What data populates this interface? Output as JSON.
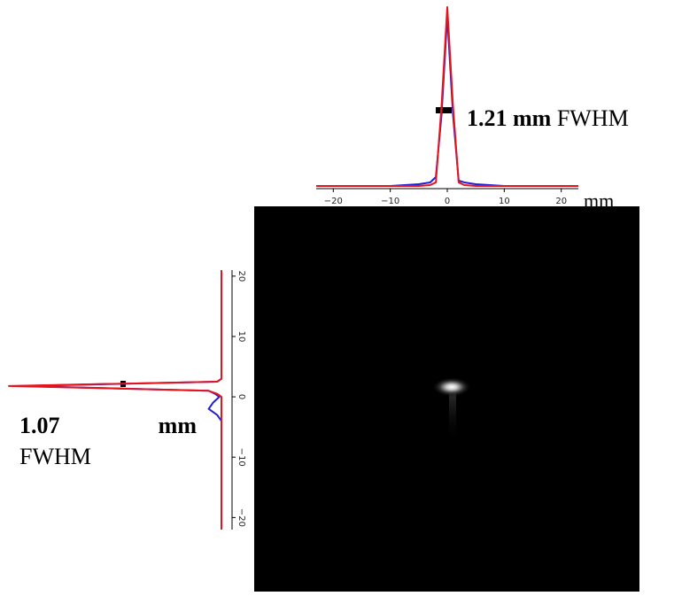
{
  "chart_data": [
    {
      "type": "line",
      "orientation": "horizontal",
      "xlabel": "mm",
      "annotation": "1.21 mm",
      "annotation_suffix": "FWHM",
      "x": [
        -23,
        -20,
        -10,
        -5,
        -3,
        -2,
        -1,
        0,
        1,
        2,
        3,
        5,
        10,
        20,
        23
      ],
      "series": [
        {
          "color": "#1f1fd6",
          "values": [
            0,
            0,
            0,
            0.01,
            0.02,
            0.05,
            0.4,
            0.95,
            0.4,
            0.03,
            0.02,
            0.01,
            0,
            0,
            0
          ]
        },
        {
          "color": "#e8141c",
          "values": [
            0,
            0,
            0,
            0,
            0.005,
            0.02,
            0.45,
            1,
            0.45,
            0.02,
            0.005,
            0,
            0,
            0,
            0
          ]
        }
      ],
      "xlim": [
        -23,
        23
      ],
      "xticks": [
        {
          "value": -20,
          "label": "−20"
        },
        {
          "value": -10,
          "label": "−10"
        },
        0,
        10,
        20
      ],
      "ylim": [
        0,
        1
      ]
    },
    {
      "type": "line",
      "orientation": "vertical",
      "annotation": "1.07",
      "annotation_unit": "mm",
      "annotation_suffix": "FWHM",
      "x": [
        -22,
        -5,
        -4,
        -3,
        -2,
        -1,
        0,
        0.5,
        1,
        1.8,
        2.5,
        3,
        10,
        21
      ],
      "series": [
        {
          "color": "#1f1fd6",
          "values": [
            0,
            0,
            0,
            0.02,
            0.06,
            0.04,
            0.01,
            0.03,
            0.06,
            0.95,
            0.02,
            0,
            0,
            0
          ]
        },
        {
          "color": "#e8141c",
          "values": [
            0,
            0,
            0,
            0,
            0,
            0,
            0,
            0.02,
            0.06,
            1,
            0.02,
            0,
            0,
            0
          ]
        }
      ],
      "xlim": [
        -22,
        21
      ],
      "xticks": [
        {
          "value": -20,
          "label": "−20"
        },
        {
          "value": -10,
          "label": "−10"
        },
        0,
        10,
        20
      ],
      "ylim": [
        0,
        1
      ]
    }
  ]
}
